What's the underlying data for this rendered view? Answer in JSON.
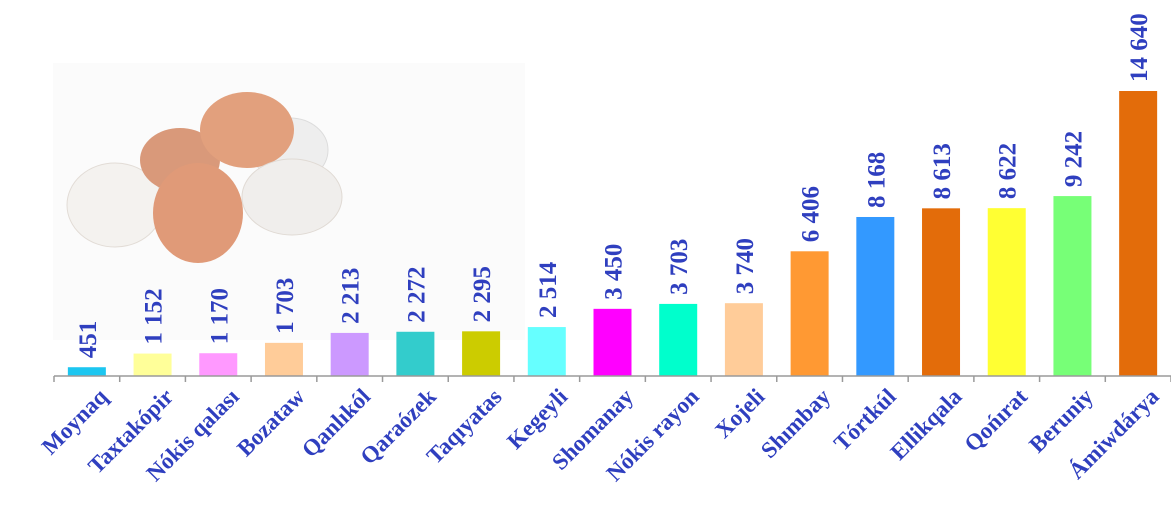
{
  "chart_data": {
    "type": "bar",
    "categories": [
      "Moynaq",
      "Taxtakópir",
      "Nókis qalası",
      "Bozataw",
      "Qanlıkól",
      "Qaraózek",
      "Taqıyatas",
      "Kegeyli",
      "Shomanay",
      "Nókis rayon",
      "Xojeli",
      "Shımbay",
      "Tórtkúl",
      "Ellikqala",
      "Qońırat",
      "Beruniy",
      "Ámiwdárya"
    ],
    "values": [
      451,
      1152,
      1170,
      1703,
      2213,
      2272,
      2295,
      2514,
      3450,
      3703,
      3740,
      6406,
      8168,
      8613,
      8622,
      9242,
      14640
    ],
    "value_labels": [
      "451",
      "1 152",
      "1 170",
      "1 703",
      "2 213",
      "2 272",
      "2 295",
      "2 514",
      "3 450",
      "3 703",
      "3 740",
      "6 406",
      "8 168",
      "8 613",
      "8 622",
      "9 242",
      "14 640"
    ],
    "colors": [
      "#1cc6f0",
      "#ffff99",
      "#ff99ff",
      "#ffcc99",
      "#cc99ff",
      "#33cccc",
      "#cccc00",
      "#66ffff",
      "#ff00ff",
      "#00ffcc",
      "#ffcc99",
      "#ff9933",
      "#3399ff",
      "#e36c0a",
      "#ffff33",
      "#77ff77",
      "#e36c0a"
    ],
    "title": "",
    "xlabel": "",
    "ylabel": "",
    "ylim": [
      0,
      14640
    ],
    "grid": false,
    "legend": "none",
    "decoration": "eggs-photo"
  }
}
